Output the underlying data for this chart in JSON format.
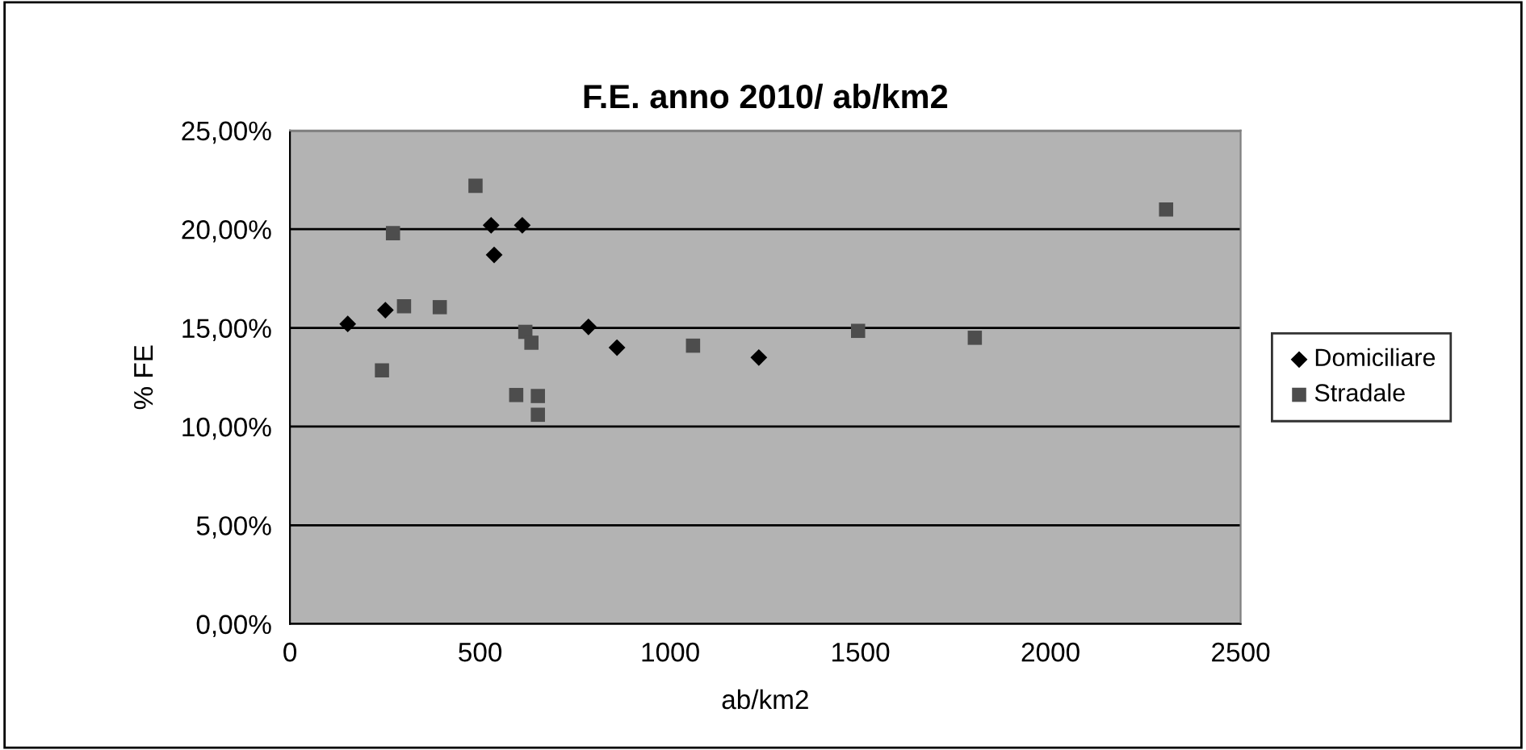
{
  "chart_data": {
    "type": "scatter",
    "title": "F.E. anno 2010/ ab/km2",
    "xlabel": "ab/km2",
    "ylabel": "% FE",
    "xlim": [
      0,
      2500
    ],
    "xticks": [
      0,
      500,
      1000,
      1500,
      2000,
      2500
    ],
    "ylim": [
      0,
      25
    ],
    "yticks": [
      {
        "value": 0,
        "label": "0,00%"
      },
      {
        "value": 5,
        "label": "5,00%"
      },
      {
        "value": 10,
        "label": "10,00%"
      },
      {
        "value": 15,
        "label": "15,00%"
      },
      {
        "value": 20,
        "label": "20,00%"
      },
      {
        "value": 25,
        "label": "25,00%"
      }
    ],
    "grid": "y",
    "legend": "right",
    "series": [
      {
        "name": "Domiciliare",
        "color": "#000000",
        "marker": "diamond",
        "x": [
          152,
          251,
          529,
          611,
          537,
          785,
          860,
          1233
        ],
        "values": [
          15.2,
          15.9,
          20.2,
          20.2,
          18.7,
          15.05,
          14.0,
          13.5
        ]
      },
      {
        "name": "Stradale",
        "color": "#4d4d4d",
        "marker": "square",
        "x": [
          488,
          271,
          300,
          394,
          242,
          619,
          635,
          595,
          652,
          652,
          1060,
          1494,
          1801,
          2304
        ],
        "values": [
          22.2,
          19.8,
          16.1,
          16.05,
          12.85,
          14.8,
          14.25,
          11.6,
          11.55,
          10.6,
          14.1,
          14.85,
          14.5,
          21.0
        ]
      }
    ]
  }
}
